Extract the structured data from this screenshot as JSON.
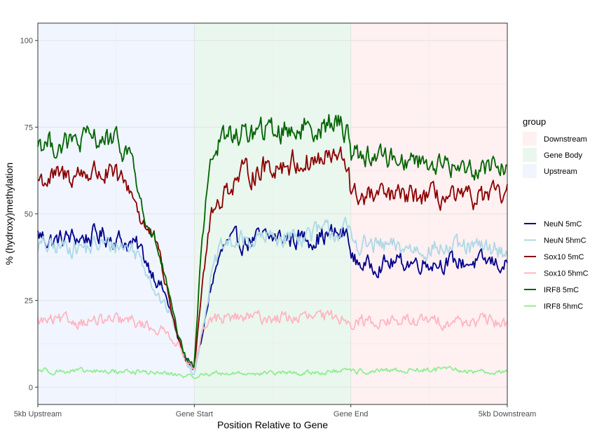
{
  "chart_data": {
    "type": "line",
    "title": "",
    "xlabel": "Position Relative to Gene",
    "ylabel": "% (hydroxy)methylation",
    "xlim": [
      0,
      3
    ],
    "ylim": [
      -5,
      105
    ],
    "x_ticks": [
      {
        "value": 0,
        "label": "5kb Upstream"
      },
      {
        "value": 1,
        "label": "Gene Start"
      },
      {
        "value": 2,
        "label": "Gene End"
      },
      {
        "value": 3,
        "label": "5kb Downstream"
      }
    ],
    "y_ticks": [
      0,
      25,
      50,
      75,
      100
    ],
    "grid": true,
    "regions": [
      {
        "name": "Upstream",
        "start": 0,
        "end": 1,
        "color": "#F0F5FF"
      },
      {
        "name": "Gene Body",
        "start": 1,
        "end": 2,
        "color": "#EAF7EE"
      },
      {
        "name": "Downstream",
        "start": 2,
        "end": 3,
        "color": "#FFF0F2"
      }
    ],
    "legend_regions": {
      "title": "group",
      "items": [
        "Downstream",
        "Gene Body",
        "Upstream"
      ]
    },
    "legend_placement": "right",
    "series": [
      {
        "name": "NeuN 5mC",
        "color": "#00008B",
        "x": [
          0,
          0.1,
          0.2,
          0.3,
          0.4,
          0.5,
          0.6,
          0.65,
          0.7,
          0.75,
          0.8,
          0.85,
          0.9,
          0.95,
          1.0,
          1.05,
          1.1,
          1.15,
          1.2,
          1.3,
          1.5,
          1.7,
          1.9,
          1.99,
          2.0,
          2.1,
          2.3,
          2.5,
          2.7,
          2.9,
          3.0
        ],
        "y": [
          44,
          42,
          43,
          43,
          44,
          43,
          41,
          40,
          36,
          32,
          28,
          22,
          13,
          8,
          5,
          14,
          28,
          36,
          41,
          42,
          43,
          43,
          44,
          44,
          37,
          35,
          36,
          36,
          36,
          36,
          35
        ]
      },
      {
        "name": "NeuN 5hmC",
        "color": "#ADD8E6",
        "x": [
          0,
          0.1,
          0.2,
          0.3,
          0.4,
          0.5,
          0.6,
          0.65,
          0.7,
          0.75,
          0.8,
          0.85,
          0.9,
          0.95,
          1.0,
          1.05,
          1.1,
          1.15,
          1.2,
          1.3,
          1.5,
          1.7,
          1.9,
          1.99,
          2.0,
          2.1,
          2.3,
          2.5,
          2.7,
          2.9,
          3.0
        ],
        "y": [
          41,
          40,
          41,
          40,
          41,
          41,
          40,
          38,
          34,
          28,
          24,
          21,
          14,
          7,
          4,
          16,
          30,
          38,
          41,
          42,
          43,
          44,
          45,
          45,
          42,
          41,
          40,
          40,
          40,
          40,
          39
        ]
      },
      {
        "name": "Sox10 5mC",
        "color": "#8B0000",
        "x": [
          0,
          0.1,
          0.2,
          0.3,
          0.4,
          0.5,
          0.6,
          0.65,
          0.7,
          0.75,
          0.8,
          0.85,
          0.9,
          0.95,
          1.0,
          1.05,
          1.1,
          1.15,
          1.2,
          1.3,
          1.5,
          1.7,
          1.9,
          1.99,
          2.0,
          2.1,
          2.3,
          2.5,
          2.7,
          2.9,
          3.0
        ],
        "y": [
          60,
          60,
          61,
          62,
          62,
          60,
          57,
          50,
          45,
          42,
          33,
          23,
          13,
          8,
          6,
          30,
          48,
          53,
          57,
          61,
          64,
          65,
          66,
          64,
          55,
          55,
          55,
          55,
          54,
          55,
          55
        ]
      },
      {
        "name": "Sox10 5hmC",
        "color": "#FFB6C1",
        "x": [
          0,
          0.1,
          0.2,
          0.3,
          0.4,
          0.5,
          0.6,
          0.65,
          0.7,
          0.75,
          0.8,
          0.85,
          0.9,
          0.95,
          1.0,
          1.05,
          1.1,
          1.15,
          1.2,
          1.3,
          1.5,
          1.7,
          1.9,
          1.99,
          2.0,
          2.1,
          2.3,
          2.5,
          2.7,
          2.9,
          3.0
        ],
        "y": [
          19,
          19,
          19,
          19,
          19,
          19,
          19,
          18,
          18,
          17,
          16,
          15,
          12,
          8,
          5,
          15,
          19,
          20,
          20,
          20,
          20,
          20,
          20,
          20,
          19,
          19,
          19,
          19,
          19,
          19,
          18
        ]
      },
      {
        "name": "IRF8 5mC",
        "color": "#006400",
        "x": [
          0,
          0.1,
          0.2,
          0.3,
          0.4,
          0.5,
          0.6,
          0.65,
          0.7,
          0.75,
          0.8,
          0.85,
          0.9,
          0.95,
          1.0,
          1.05,
          1.1,
          1.15,
          1.2,
          1.3,
          1.5,
          1.7,
          1.9,
          1.99,
          2.0,
          2.1,
          2.3,
          2.5,
          2.7,
          2.9,
          3.0
        ],
        "y": [
          71,
          70,
          70,
          71,
          72,
          70,
          67,
          55,
          45,
          42,
          34,
          24,
          14,
          8,
          6,
          44,
          66,
          70,
          72,
          73,
          74,
          75,
          76,
          74,
          68,
          67,
          66,
          65,
          63,
          64,
          64
        ]
      },
      {
        "name": "IRF8 5hmC",
        "color": "#90EE90",
        "x": [
          0,
          0.2,
          0.4,
          0.6,
          0.8,
          0.9,
          0.95,
          1.0,
          1.05,
          1.1,
          1.3,
          1.5,
          1.7,
          1.9,
          2.0,
          2.2,
          2.4,
          2.6,
          2.8,
          3.0
        ],
        "y": [
          5,
          4.5,
          4.5,
          4.5,
          4,
          3.5,
          3,
          3,
          3.5,
          4,
          4,
          4,
          4,
          4.5,
          4.5,
          4.5,
          5,
          5,
          4.5,
          4.5
        ]
      }
    ]
  }
}
